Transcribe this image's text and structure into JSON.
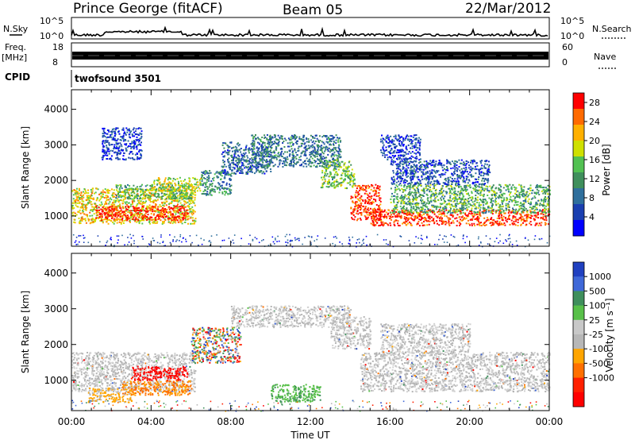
{
  "header": {
    "station": "Prince George (fitACF)",
    "beam": "Beam 05",
    "date": "22/Mar/2012"
  },
  "strips": {
    "nsky_label": "N.Sky",
    "nsearch_label": "N.Search",
    "nsky_ticks": [
      "10^5",
      "10^0"
    ],
    "nsearch_ticks": [
      "10^5",
      "10^0"
    ],
    "freq_label": "Freq.",
    "freq_unit": "[MHz]",
    "freq_ticks": [
      "18",
      "8"
    ],
    "nave_label": "Nave",
    "nave_ticks": [
      "60",
      "0"
    ],
    "cpid_label": "CPID",
    "cpid_value": "twofsound 3501"
  },
  "colors": {
    "power": [
      "#0000ff",
      "#1a3fb0",
      "#2f6f9c",
      "#3f8f5c",
      "#52c152",
      "#cfe000",
      "#ffb000",
      "#ff6a00",
      "#ff0000"
    ],
    "velocity": [
      "#2040c0",
      "#3f68d8",
      "#3f8f5c",
      "#58c049",
      "#c8c8c8",
      "#b7b7b7",
      "#ffa500",
      "#ff7000",
      "#ff2000",
      "#ff0000"
    ],
    "ground_scatter": "#b4b4b4"
  },
  "chart_data": [
    {
      "type": "heatmap",
      "panel": "power",
      "ylabel": "Slant Range [km]",
      "yticks": [
        1000,
        2000,
        3000,
        4000
      ],
      "ylim": [
        150,
        4550
      ],
      "xlim": [
        0,
        24
      ],
      "colorbar_label": "Power [dB]",
      "colorbar_ticks": [
        "4",
        "8",
        "12",
        "16",
        "20",
        "24",
        "28"
      ],
      "colorbar_range": [
        0,
        30
      ],
      "regions": [
        {
          "t0": 0.0,
          "t1": 6.2,
          "r0": 800,
          "r1": 1800,
          "level": 0.65
        },
        {
          "t0": 1.2,
          "t1": 5.8,
          "r0": 900,
          "r1": 1300,
          "level": 0.95
        },
        {
          "t0": 2.2,
          "t1": 6.0,
          "r0": 1500,
          "r1": 1900,
          "level": 0.45
        },
        {
          "t0": 4.0,
          "t1": 6.5,
          "r0": 1700,
          "r1": 2100,
          "level": 0.6
        },
        {
          "t0": 6.5,
          "t1": 8.0,
          "r0": 1600,
          "r1": 2300,
          "level": 0.35
        },
        {
          "t0": 7.5,
          "t1": 10.0,
          "r0": 2200,
          "r1": 3100,
          "level": 0.25
        },
        {
          "t0": 9.0,
          "t1": 13.5,
          "r0": 2400,
          "r1": 3300,
          "level": 0.3
        },
        {
          "t0": 12.5,
          "t1": 14.2,
          "r0": 1800,
          "r1": 2600,
          "level": 0.5
        },
        {
          "t0": 14.0,
          "t1": 15.5,
          "r0": 900,
          "r1": 1900,
          "level": 0.9
        },
        {
          "t0": 15.0,
          "t1": 24.0,
          "r0": 750,
          "r1": 1200,
          "level": 0.9
        },
        {
          "t0": 16.0,
          "t1": 24.0,
          "r0": 1100,
          "r1": 1900,
          "level": 0.45
        },
        {
          "t0": 16.0,
          "t1": 21.0,
          "r0": 1900,
          "r1": 2600,
          "level": 0.2
        },
        {
          "t0": 15.5,
          "t1": 17.5,
          "r0": 2600,
          "r1": 3300,
          "level": 0.15
        },
        {
          "t0": 1.5,
          "t1": 3.5,
          "r0": 2600,
          "r1": 3500,
          "level": 0.15
        }
      ]
    },
    {
      "type": "heatmap",
      "panel": "velocity",
      "ylabel": "Slant Range [km]",
      "yticks": [
        1000,
        2000,
        3000,
        4000
      ],
      "ylim": [
        150,
        4550
      ],
      "xlim": [
        0,
        24
      ],
      "xticks": [
        "00:00",
        "04:00",
        "08:00",
        "12:00",
        "16:00",
        "20:00",
        "00:00"
      ],
      "xlabel": "Time UT",
      "colorbar_label": "Velocity [m s⁻¹]",
      "colorbar_ticks": [
        "1000",
        "500",
        "100",
        "25",
        "-25",
        "-100",
        "-500",
        "-1000"
      ],
      "regions": [
        {
          "t0": 0.0,
          "t1": 6.2,
          "r0": 700,
          "r1": 1800,
          "kind": "ground"
        },
        {
          "t0": 3.0,
          "t1": 5.8,
          "r0": 1000,
          "r1": 1400,
          "kind": "neg_strong"
        },
        {
          "t0": 2.5,
          "t1": 6.0,
          "r0": 600,
          "r1": 1000,
          "kind": "neg"
        },
        {
          "t0": 0.8,
          "t1": 3.0,
          "r0": 400,
          "r1": 800,
          "kind": "neg_weak"
        },
        {
          "t0": 6.0,
          "t1": 8.5,
          "r0": 1500,
          "r1": 2500,
          "kind": "mixed"
        },
        {
          "t0": 8.0,
          "t1": 14.0,
          "r0": 2500,
          "r1": 3100,
          "kind": "ground"
        },
        {
          "t0": 13.0,
          "t1": 15.0,
          "r0": 1900,
          "r1": 2800,
          "kind": "ground"
        },
        {
          "t0": 14.5,
          "t1": 24.0,
          "r0": 700,
          "r1": 1800,
          "kind": "ground"
        },
        {
          "t0": 15.5,
          "t1": 20.0,
          "r0": 1800,
          "r1": 2600,
          "kind": "ground"
        },
        {
          "t0": 10.0,
          "t1": 12.5,
          "r0": 400,
          "r1": 900,
          "kind": "pos"
        }
      ]
    }
  ]
}
